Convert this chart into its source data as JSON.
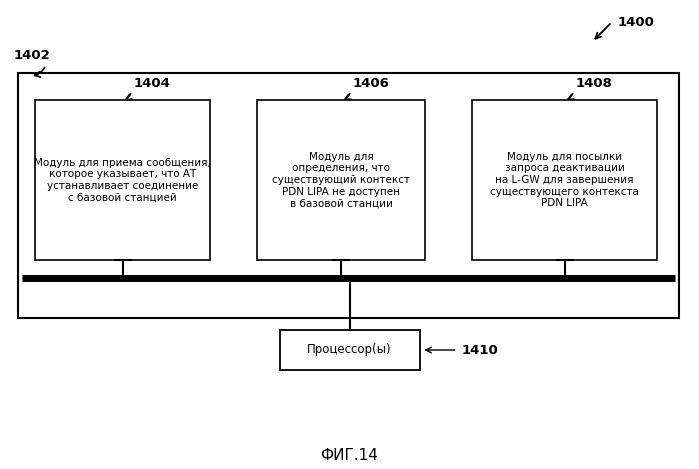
{
  "fig_label": "ФИГ.14",
  "arrow_label": "1400",
  "outer_box_label": "1402",
  "box1_label": "1404",
  "box2_label": "1406",
  "box3_label": "1408",
  "processor_label": "1410",
  "box1_text": "Модуль для приема сообщения,\nкоторое указывает, что АТ\nустанавливает соединение\nс базовой станцией",
  "box2_text": "Модуль для\nопределения, что\nсуществующий контекст\nPDN LIPA не доступен\nв базовой станции",
  "box3_text": "Модуль для посылки\nзапроса деактивации\nна L-GW для завершения\nсуществующего контекста\nPDN LIPA",
  "processor_text": "Процессор(ы)",
  "bg_color": "#ffffff",
  "font_size": 7.5,
  "label_font_size": 9.5
}
